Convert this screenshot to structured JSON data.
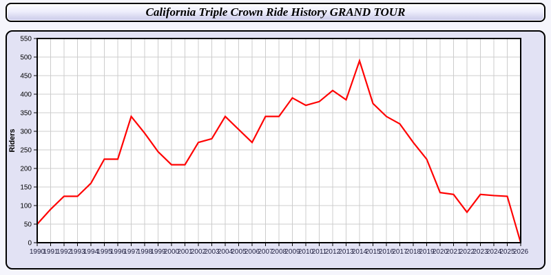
{
  "title": "California Triple Crown Ride History GRAND TOUR",
  "colors": {
    "page_background": "#f5f5fc",
    "panel_background": "#e2e2f4",
    "plot_background": "#ffffff",
    "grid": "#cccccc",
    "line": "#ff0000",
    "border": "#000000"
  },
  "chart_data": {
    "type": "line",
    "title": "California Triple Crown Ride History GRAND TOUR",
    "xlabel": "",
    "ylabel": "Riders",
    "ylim": [
      0,
      550
    ],
    "y_ticks": [
      0,
      50,
      100,
      150,
      200,
      250,
      300,
      350,
      400,
      450,
      500,
      550
    ],
    "grid": true,
    "legend": false,
    "line_color": "#ff0000",
    "grid_color": "#cccccc",
    "categories": [
      "1990",
      "1991",
      "1992",
      "1993",
      "1994",
      "1995",
      "1996",
      "1997",
      "1998",
      "1999",
      "2000",
      "2001",
      "2002",
      "2003",
      "2004",
      "2005",
      "2006",
      "2007",
      "2008",
      "2009",
      "2010",
      "2011",
      "2012",
      "2013",
      "2014",
      "2015",
      "2016",
      "2017",
      "2018",
      "2019",
      "2020",
      "2021",
      "2022",
      "2023",
      "2024",
      "2025",
      "2026"
    ],
    "values": [
      50,
      90,
      125,
      125,
      160,
      225,
      225,
      340,
      295,
      245,
      210,
      210,
      270,
      280,
      340,
      305,
      270,
      340,
      340,
      390,
      370,
      380,
      410,
      385,
      490,
      375,
      340,
      320,
      270,
      225,
      135,
      130,
      82,
      130,
      127,
      125,
      0
    ]
  }
}
